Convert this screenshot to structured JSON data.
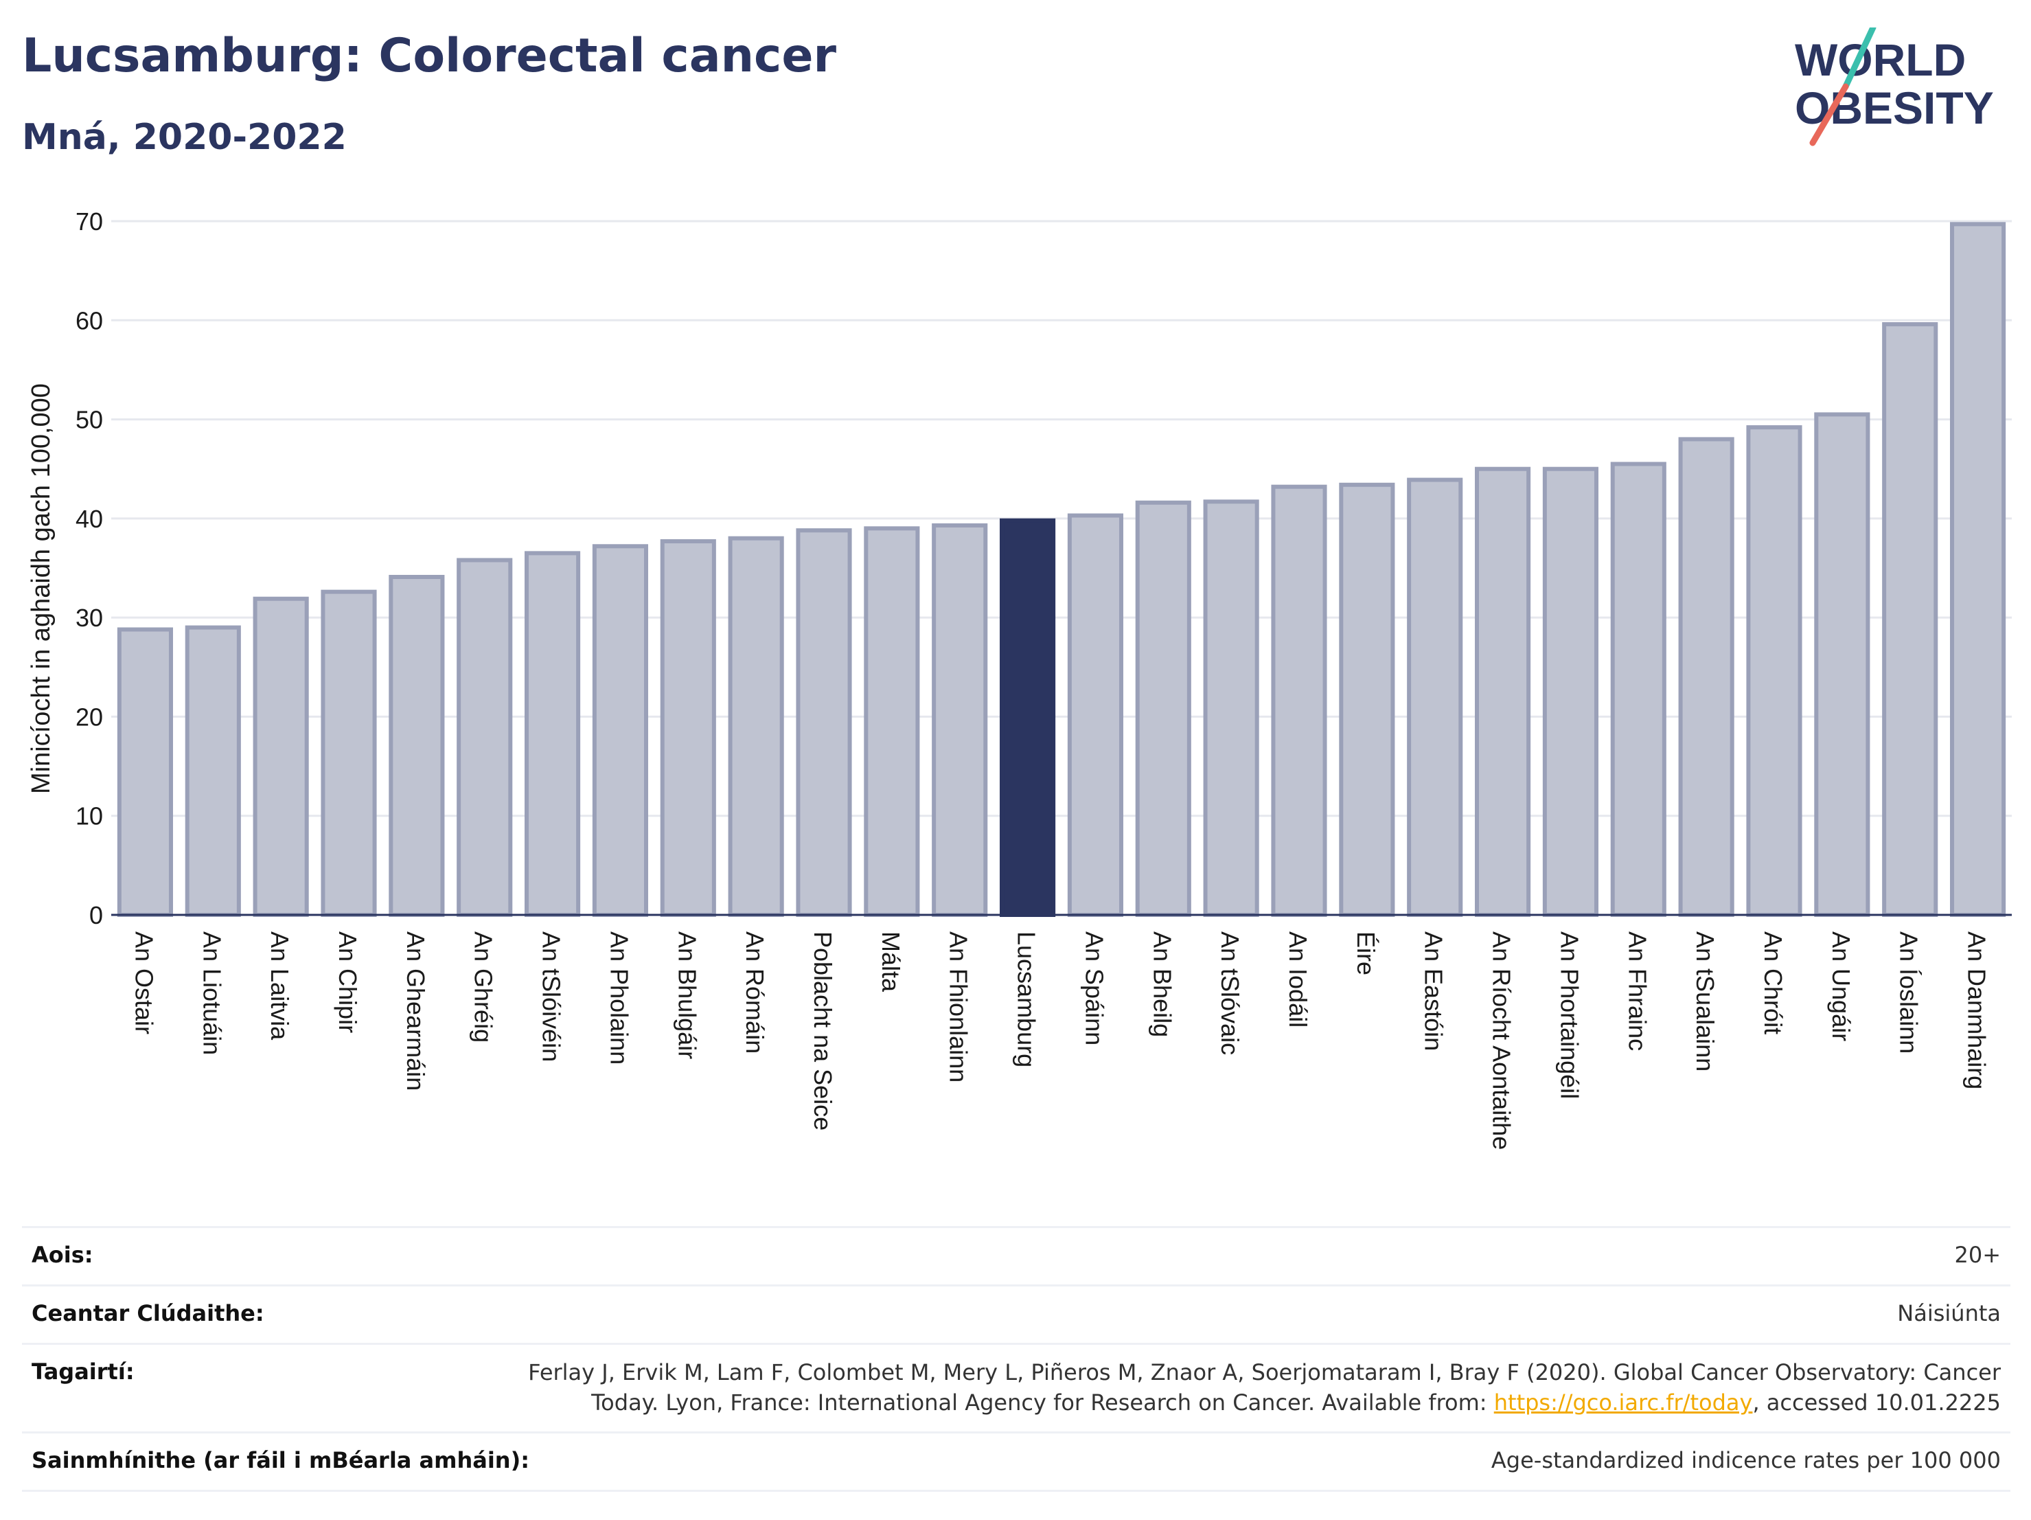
{
  "header": {
    "title": "Lucsamburg: Colorectal cancer",
    "subtitle": "Mná, 2020-2022"
  },
  "logo": {
    "line1": "WORLD",
    "line2": "OBESITY"
  },
  "colors": {
    "bar": "#bfc3d1",
    "bar_border": "#9aa0b8",
    "highlight": "#2b3560",
    "text": "#2b3560",
    "link": "#f2a900",
    "logo_slash_top": "#3bbfad",
    "logo_slash_bottom": "#e8685a"
  },
  "chart_data": {
    "type": "bar",
    "ylabel": "Minicíocht in aghaidh gach 100,000",
    "ylim": [
      0,
      70
    ],
    "yticks": [
      0,
      10,
      20,
      30,
      40,
      50,
      60,
      70
    ],
    "grid": true,
    "highlight": "Lucsamburg",
    "categories": [
      "An Ostair",
      "An Liotuáin",
      "An Laitvia",
      "An Chipir",
      "An Ghearmáin",
      "An Ghréig",
      "An tSlóivéin",
      "An Pholainn",
      "An Bhulgáir",
      "An Rómáin",
      "Poblacht na Seice",
      "Málta",
      "An Fhionlainn",
      "Lucsamburg",
      "An Spáinn",
      "An Bheilg",
      "An tSlóvaic",
      "An Iodáil",
      "Éire",
      "An Eastóin",
      "An Ríocht Aontaithe",
      "An Phortaingéil",
      "An Fhrainc",
      "An tSualainn",
      "An Chróit",
      "An Ungáir",
      "An Íoslainn",
      "An Danmhairg"
    ],
    "values": [
      28.8,
      29.0,
      31.9,
      32.6,
      34.1,
      35.8,
      36.5,
      37.2,
      37.7,
      38.0,
      38.8,
      39.0,
      39.3,
      39.8,
      40.3,
      41.6,
      41.7,
      43.2,
      43.4,
      43.9,
      45.0,
      45.0,
      45.5,
      48.0,
      49.2,
      50.5,
      59.6,
      69.7
    ]
  },
  "info": {
    "age_label": "Aois:",
    "age_value": "20+",
    "coverage_label": "Ceantar Clúdaithe:",
    "coverage_value": "Náisiúnta",
    "references_label": "Tagairtí:",
    "references_text": "Ferlay J, Ervik M, Lam F, Colombet M, Mery L, Piñeros M, Znaor A, Soerjomataram I, Bray F (2020). Global Cancer Observatory: Cancer Today. Lyon, France: International Agency for Research on Cancer. Available from: ",
    "references_link": "https://gco.iarc.fr/today",
    "references_suffix": ", accessed 10.01.2225",
    "definitions_label": "Sainmhínithe (ar fáil i mBéarla amháin):",
    "definitions_value": "Age-standardized indicence rates per 100 000"
  }
}
